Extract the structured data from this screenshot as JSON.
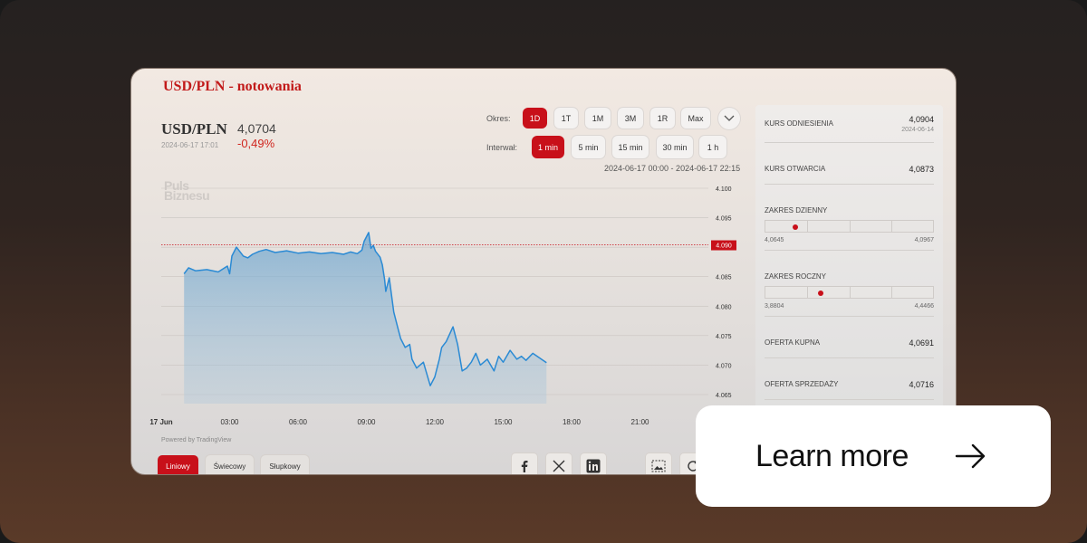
{
  "page": {
    "title": "USD/PLN - notowania"
  },
  "instrument": {
    "name": "USD/PLN",
    "datetime": "2024-06-17 17:01",
    "price": "4,0704",
    "change": "-0,49%"
  },
  "controls": {
    "period_label": "Okres:",
    "periods": [
      "1D",
      "1T",
      "1M",
      "3M",
      "1R",
      "Max"
    ],
    "active_period": "1D",
    "interval_label": "Interwał:",
    "intervals": [
      "1 min",
      "5 min",
      "15 min",
      "30 min",
      "1 h"
    ],
    "active_interval": "1 min",
    "range_text": "2024-06-17 00:00 - 2024-06-17 22:15",
    "expand_icon": "chevron-down-icon"
  },
  "watermark": {
    "line1": "Puls",
    "line2": "Biznesu"
  },
  "chart_data": {
    "type": "area",
    "x_tick_labels": [
      "17 Jun",
      "03:00",
      "06:00",
      "09:00",
      "12:00",
      "15:00",
      "18:00",
      "21:00"
    ],
    "y_tick_labels": [
      "4.100",
      "4.095",
      "4.090",
      "4.085",
      "4.080",
      "4.075",
      "4.070",
      "4.065"
    ],
    "ylim": [
      4.065,
      4.1
    ],
    "reference_line": {
      "value": 4.0904,
      "label": "4.090",
      "color": "#c8101a"
    },
    "series": [
      {
        "x": [
          1.0,
          1.2,
          1.5,
          2.0,
          2.5,
          2.9,
          3.0,
          3.1,
          3.3,
          3.6,
          3.8,
          4.0,
          4.3,
          4.6,
          5.0,
          5.5,
          6.0,
          6.5,
          7.0,
          7.5,
          8.0,
          8.3,
          8.6,
          8.8,
          8.9,
          9.1,
          9.2,
          9.3,
          9.4,
          9.6,
          9.7,
          9.8,
          9.85,
          10.0,
          10.2,
          10.4,
          10.5,
          10.7,
          10.9,
          11.0,
          11.2,
          11.5,
          11.8,
          12.0,
          12.2,
          12.3,
          12.5,
          12.8,
          13.0,
          13.2,
          13.4,
          13.6,
          13.8,
          14.0,
          14.3,
          14.6,
          14.8,
          15.0,
          15.3,
          15.6,
          15.8,
          16.0,
          16.3,
          16.6,
          16.9
        ],
        "values": [
          4.0855,
          4.0865,
          4.086,
          4.0862,
          4.0858,
          4.0868,
          4.0855,
          4.0885,
          4.09,
          4.0885,
          4.0882,
          4.0888,
          4.0893,
          4.0896,
          4.0891,
          4.0894,
          4.089,
          4.0892,
          4.0889,
          4.0891,
          4.0888,
          4.0892,
          4.0889,
          4.0895,
          4.091,
          4.0925,
          4.0898,
          4.0903,
          4.0893,
          4.0883,
          4.087,
          4.0845,
          4.0825,
          4.0848,
          4.079,
          4.076,
          4.0745,
          4.073,
          4.0735,
          4.071,
          4.0695,
          4.0705,
          4.0665,
          4.068,
          4.071,
          4.073,
          4.074,
          4.0765,
          4.0735,
          4.069,
          4.0695,
          4.0705,
          4.072,
          4.07,
          4.071,
          4.069,
          4.0715,
          4.0705,
          4.0725,
          4.071,
          4.0715,
          4.0708,
          4.072,
          4.0712,
          4.0704
        ],
        "color": "#2a8ad4"
      }
    ],
    "grid": true
  },
  "powered": "Powered by TradingView",
  "chart_tabs": [
    "Liniowy",
    "Świecowy",
    "Słupkowy"
  ],
  "active_chart_tab": "Liniowy",
  "share_icons": [
    "facebook-icon",
    "x-icon",
    "linkedin-icon",
    "image-icon",
    "refresh-icon"
  ],
  "stats": {
    "ref_label": "KURS ODNIESIENIA",
    "ref_value": "4,0904",
    "ref_date": "2024-06-14",
    "open_label": "KURS OTWARCIA",
    "open_value": "4,0873",
    "day_label": "ZAKRES DZIENNY",
    "day_min": "4,0645",
    "day_max": "4,0967",
    "day_pos": 0.18,
    "year_label": "ZAKRES ROCZNY",
    "year_min": "3,8804",
    "year_max": "4,4466",
    "year_pos": 0.33,
    "bid_label": "OFERTA KUPNA",
    "bid_value": "4,0691",
    "ask_label": "OFERTA SPRZEDAŻY",
    "ask_value": "4,0716"
  },
  "cta": {
    "label": "Learn more",
    "icon": "arrow-right-icon"
  }
}
